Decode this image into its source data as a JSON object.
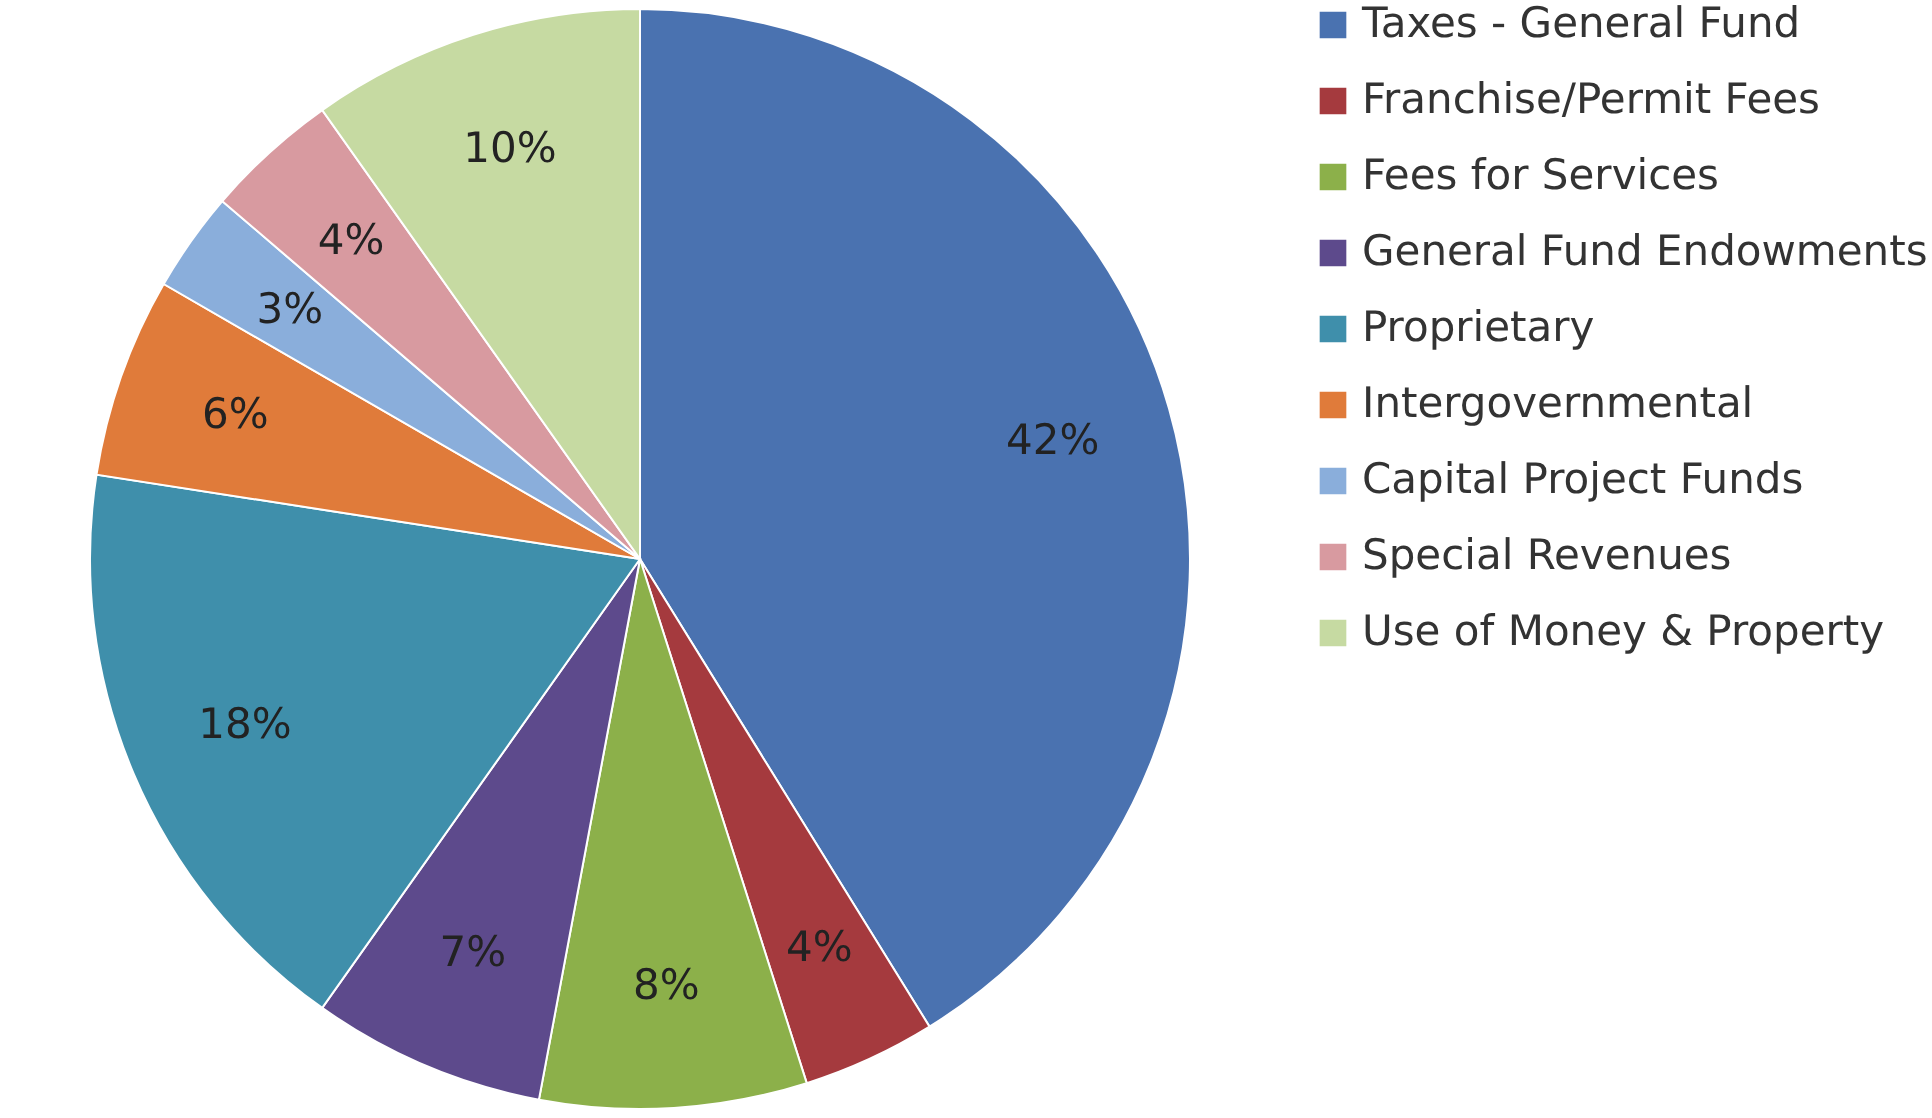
{
  "chart_data": {
    "type": "pie",
    "categories": [
      "Taxes - General Fund",
      "Franchise/Permit Fees",
      "Fees for Services",
      "General Fund Endowments",
      "Proprietary",
      "Intergovernmental",
      "Capital Project Funds",
      "Special Revenues",
      "Use of Money & Property"
    ],
    "values": [
      42,
      4,
      8,
      7,
      18,
      6,
      3,
      4,
      10
    ],
    "value_labels": [
      "42%",
      "4%",
      "8%",
      "7%",
      "18%",
      "6%",
      "3%",
      "4%",
      "10%"
    ],
    "colors": [
      "#4a72b0",
      "#a53a3e",
      "#8cb04a",
      "#5d4a8c",
      "#3f8fab",
      "#e07b3a",
      "#8aaedb",
      "#d89aa0",
      "#c6daa2"
    ],
    "legend": "right"
  }
}
